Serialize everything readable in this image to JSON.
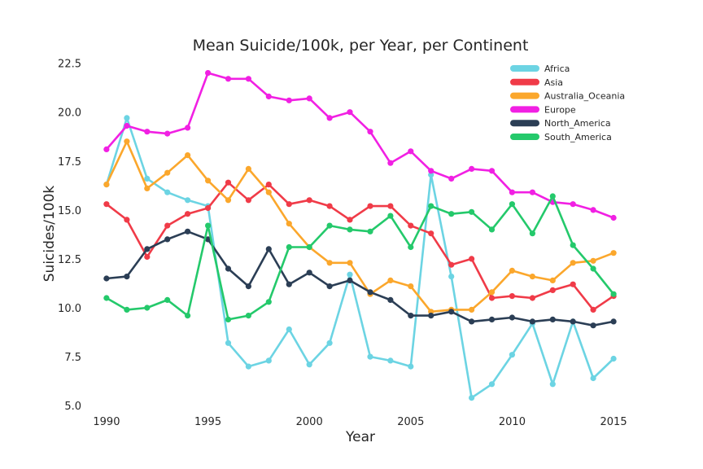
{
  "chart_data": {
    "type": "line",
    "title": "Mean Suicide/100k, per Year, per Continent",
    "xlabel": "Year",
    "ylabel": "Suicides/100k",
    "xlim": [
      1989.2,
      2015.8
    ],
    "ylim": [
      4.8,
      22.9
    ],
    "xticks": [
      "1990",
      "1995",
      "2000",
      "2005",
      "2010",
      "2015"
    ],
    "yticks": [
      "5.0",
      "7.5",
      "10.0",
      "12.5",
      "15.0",
      "17.5",
      "20.0",
      "22.5"
    ],
    "grid": false,
    "legend_position": "top-right",
    "x": [
      1990,
      1991,
      1992,
      1993,
      1994,
      1995,
      1996,
      1997,
      1998,
      1999,
      2000,
      2001,
      2002,
      2003,
      2004,
      2005,
      2006,
      2007,
      2008,
      2009,
      2010,
      2011,
      2012,
      2013,
      2014,
      2015
    ],
    "series": [
      {
        "name": "Africa",
        "color": "#6cd4e3",
        "values": [
          16.3,
          19.7,
          16.6,
          15.9,
          15.5,
          15.2,
          8.2,
          7.0,
          7.3,
          8.9,
          7.1,
          8.2,
          11.7,
          7.5,
          7.3,
          7.0,
          16.8,
          11.6,
          5.4,
          6.1,
          7.6,
          9.2,
          6.1,
          9.3,
          6.4,
          7.4
        ]
      },
      {
        "name": "Asia",
        "color": "#f03b48",
        "values": [
          15.3,
          14.5,
          12.6,
          14.2,
          14.8,
          15.1,
          16.4,
          15.5,
          16.3,
          15.3,
          15.5,
          15.2,
          14.5,
          15.2,
          15.2,
          14.2,
          13.8,
          12.2,
          12.5,
          10.5,
          10.6,
          10.5,
          10.9,
          11.2,
          9.9,
          10.6
        ]
      },
      {
        "name": "Australia_Oceania",
        "color": "#fba72c",
        "values": [
          16.3,
          18.5,
          16.1,
          16.9,
          17.8,
          16.5,
          15.5,
          17.1,
          15.9,
          14.3,
          13.1,
          12.3,
          12.3,
          10.7,
          11.4,
          11.1,
          9.8,
          9.9,
          9.9,
          10.8,
          11.9,
          11.6,
          11.4,
          12.3,
          12.4,
          12.8
        ]
      },
      {
        "name": "Europe",
        "color": "#f120e3",
        "values": [
          18.1,
          19.3,
          19.0,
          18.9,
          19.2,
          22.0,
          21.7,
          21.7,
          20.8,
          20.6,
          20.7,
          19.7,
          20.0,
          19.0,
          17.4,
          18.0,
          17.0,
          16.6,
          17.1,
          17.0,
          15.9,
          15.9,
          15.4,
          15.3,
          15.0,
          14.6
        ]
      },
      {
        "name": "North_America",
        "color": "#2b3e55",
        "values": [
          11.5,
          11.6,
          13.0,
          13.5,
          13.9,
          13.5,
          12.0,
          11.1,
          13.0,
          11.2,
          11.8,
          11.1,
          11.4,
          10.8,
          10.4,
          9.6,
          9.6,
          9.8,
          9.3,
          9.4,
          9.5,
          9.3,
          9.4,
          9.3,
          9.1,
          9.3
        ]
      },
      {
        "name": "South_America",
        "color": "#24c96b",
        "values": [
          10.5,
          9.9,
          10.0,
          10.4,
          9.6,
          14.2,
          9.4,
          9.6,
          10.3,
          13.1,
          13.1,
          14.2,
          14.0,
          13.9,
          14.7,
          13.1,
          15.2,
          14.8,
          14.9,
          14.0,
          15.3,
          13.8,
          15.7,
          13.2,
          12.0,
          10.7
        ]
      }
    ]
  }
}
